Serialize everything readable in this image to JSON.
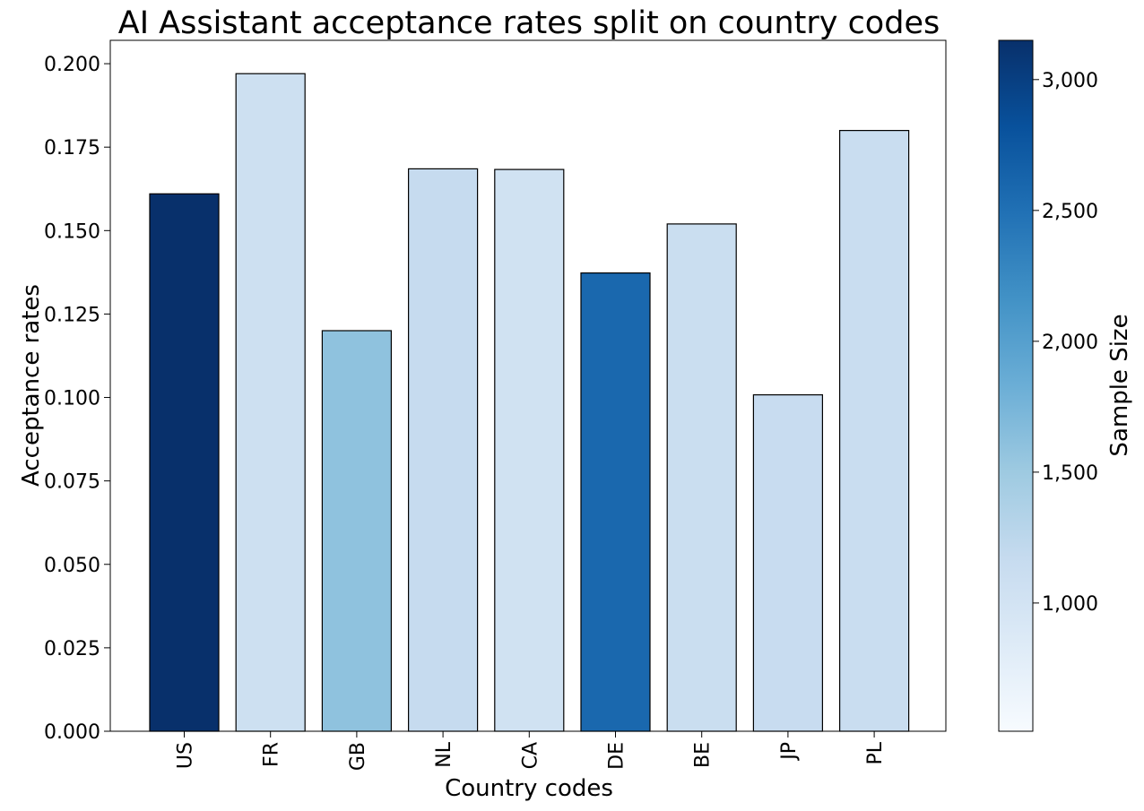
{
  "chart_data": {
    "type": "bar",
    "title": "AI Assistant acceptance rates split on country codes",
    "xlabel": "Country codes",
    "ylabel": "Acceptance rates",
    "ylim": [
      0,
      0.207
    ],
    "yticks": [
      "0.000",
      "0.025",
      "0.050",
      "0.075",
      "0.100",
      "0.125",
      "0.150",
      "0.175",
      "0.200"
    ],
    "categories": [
      "US",
      "FR",
      "GB",
      "NL",
      "CA",
      "DE",
      "BE",
      "JP",
      "PL"
    ],
    "values": [
      0.161,
      0.197,
      0.12,
      0.1685,
      0.1683,
      0.1373,
      0.152,
      0.1008,
      0.18
    ],
    "sample_sizes": [
      3150,
      1070,
      1600,
      1170,
      1030,
      2580,
      1110,
      1140,
      1130
    ],
    "grid": false,
    "colorbar": {
      "label": "Sample Size",
      "colormap": "Blues",
      "range": [
        510,
        3150
      ],
      "ticks": [
        "1,000",
        "1,500",
        "2,000",
        "2,500",
        "3,000"
      ],
      "tick_values": [
        1000,
        1500,
        2000,
        2500,
        3000
      ]
    }
  }
}
